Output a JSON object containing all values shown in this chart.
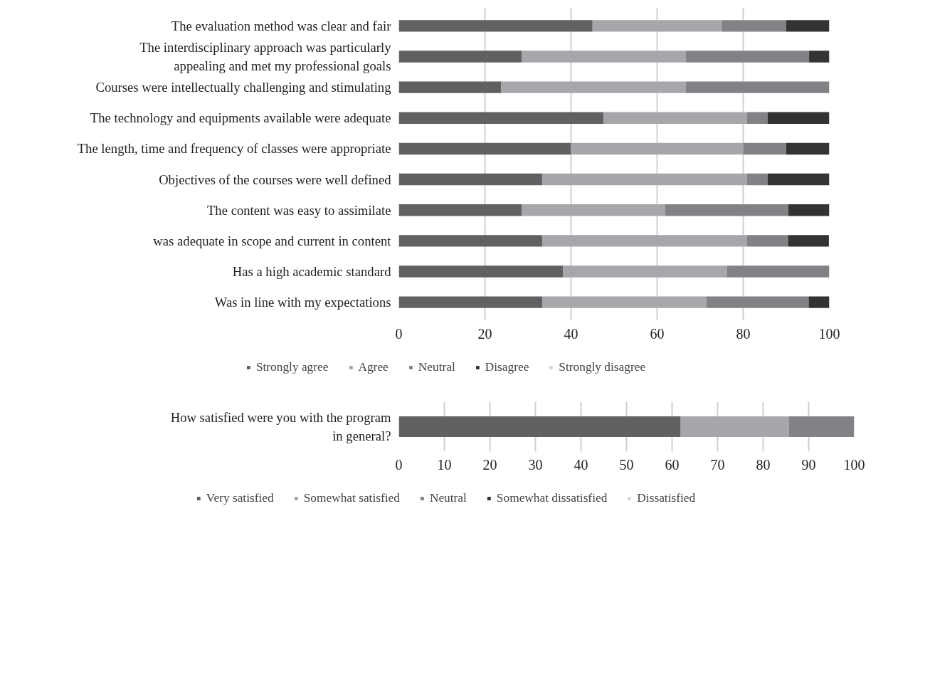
{
  "chart_data": [
    {
      "type": "bar",
      "orientation": "horizontal",
      "stacked": true,
      "categories": [
        "The evaluation method was clear and fair",
        "The interdisciplinary approach was particularly\nappealing and met my professional goals",
        "Courses were intellectually challenging and stimulating",
        "The technology and equipments available were adequate",
        "The length, time and frequency of classes were appropriate",
        "Objectives of the courses were well defined",
        "The content was easy to assimilate",
        "was adequate in scope and current in content",
        "Has a high academic standard",
        "Was in line with my expectations"
      ],
      "series": [
        {
          "name": "Strongly agree",
          "color": "#616163",
          "values": [
            45,
            28.6,
            23.8,
            47.6,
            40,
            33.3,
            28.6,
            33.3,
            38.1,
            33.3
          ]
        },
        {
          "name": "Agree",
          "color": "#a6a7aa",
          "values": [
            30,
            38.1,
            42.9,
            33.3,
            40,
            47.6,
            33.3,
            47.6,
            38.1,
            38.1
          ]
        },
        {
          "name": "Neutral",
          "color": "#818285",
          "values": [
            15,
            28.6,
            33.3,
            4.8,
            10,
            4.8,
            28.6,
            9.5,
            23.8,
            23.8
          ]
        },
        {
          "name": "Disagree",
          "color": "#333333",
          "values": [
            10,
            4.8,
            0,
            14.3,
            10,
            14.3,
            9.5,
            9.5,
            0,
            4.8
          ]
        },
        {
          "name": "Strongly disagree",
          "color": "#d9d9d9",
          "values": [
            0,
            0,
            0,
            0,
            0,
            0,
            0,
            0,
            0,
            0
          ]
        }
      ],
      "xlim": [
        0,
        100
      ],
      "xticks": [
        0,
        20,
        40,
        60,
        80,
        100
      ],
      "grid": "x",
      "legend": "bottom"
    },
    {
      "type": "bar",
      "orientation": "horizontal",
      "stacked": true,
      "categories": [
        "How satisfied were you with the program\nin general?"
      ],
      "series": [
        {
          "name": "Very satisfied",
          "color": "#616163",
          "values": [
            61.9
          ]
        },
        {
          "name": "Somewhat satisfied",
          "color": "#a6a7aa",
          "values": [
            23.8
          ]
        },
        {
          "name": "Neutral",
          "color": "#818285",
          "values": [
            14.3
          ]
        },
        {
          "name": "Somewhat dissatisfied",
          "color": "#333333",
          "values": [
            0
          ]
        },
        {
          "name": "Dissatisfied",
          "color": "#d9d9d9",
          "values": [
            0
          ]
        }
      ],
      "xlim": [
        0,
        100
      ],
      "xticks": [
        0,
        10,
        20,
        30,
        40,
        50,
        60,
        70,
        80,
        90,
        100
      ],
      "grid": "x",
      "legend": "bottom"
    }
  ]
}
